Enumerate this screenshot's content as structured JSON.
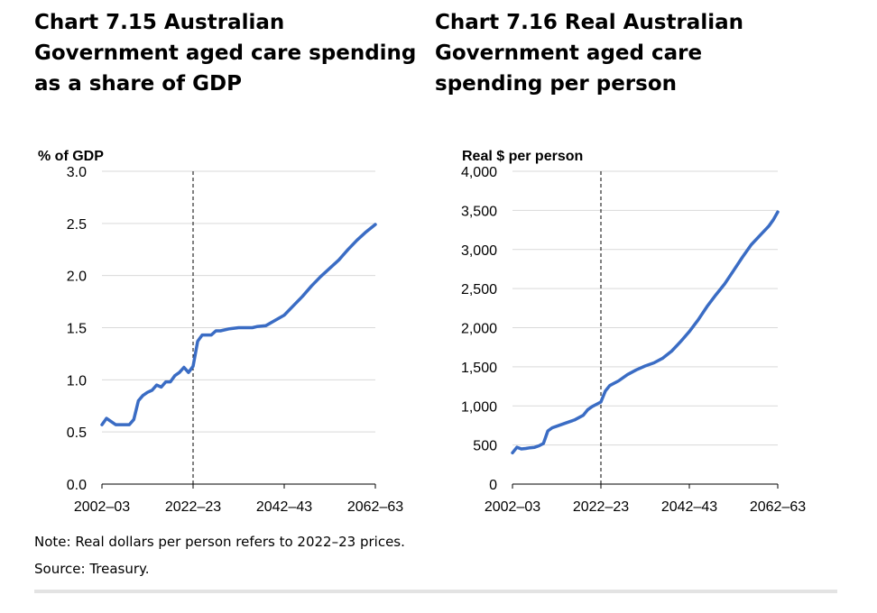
{
  "titles": {
    "left": "Chart 7.15  Australian Government aged care spending as a share of GDP",
    "right": "Chart 7.16  Real Australian Government aged care spending per person"
  },
  "footnotes": {
    "note": "Note: Real dollars per person refers to 2022–23 prices.",
    "source": "Source: Treasury."
  },
  "colors": {
    "series": "#3a6cc4",
    "grid": "#d9d9d9"
  },
  "chart_data": [
    {
      "id": "left",
      "type": "line",
      "title": "Chart 7.15  Australian Government aged care spending as a share of GDP",
      "ylabel": "% of GDP",
      "xlabel": "",
      "ylim": [
        0,
        3
      ],
      "yticks": [
        "0.0",
        "0.5",
        "1.0",
        "1.5",
        "2.0",
        "2.5",
        "3.0"
      ],
      "ytick_values": [
        0,
        0.5,
        1.0,
        1.5,
        2.0,
        2.5,
        3.0
      ],
      "xlim": [
        2002,
        2062
      ],
      "xticks": [
        "2002–03",
        "2022–23",
        "2042–43",
        "2062–63"
      ],
      "xtick_values": [
        2002,
        2022,
        2042,
        2062
      ],
      "marker_line_x": 2022,
      "grid": true,
      "series": [
        {
          "x": [
            2002,
            2003,
            2004,
            2005,
            2006,
            2007,
            2008,
            2009,
            2010,
            2011,
            2012,
            2013,
            2014,
            2015,
            2016,
            2017,
            2018,
            2019,
            2020,
            2021,
            2022,
            2023,
            2024,
            2025,
            2026,
            2027,
            2028,
            2030,
            2032,
            2034,
            2035,
            2036,
            2038,
            2040,
            2042,
            2044,
            2046,
            2048,
            2050,
            2052,
            2054,
            2056,
            2058,
            2060,
            2062
          ],
          "values": [
            0.57,
            0.63,
            0.6,
            0.57,
            0.57,
            0.57,
            0.57,
            0.62,
            0.8,
            0.85,
            0.88,
            0.9,
            0.95,
            0.93,
            0.98,
            0.98,
            1.04,
            1.07,
            1.12,
            1.07,
            1.13,
            1.37,
            1.43,
            1.43,
            1.43,
            1.47,
            1.47,
            1.49,
            1.5,
            1.5,
            1.5,
            1.51,
            1.52,
            1.57,
            1.62,
            1.71,
            1.8,
            1.9,
            1.99,
            2.07,
            2.15,
            2.25,
            2.34,
            2.42,
            2.49
          ]
        }
      ]
    },
    {
      "id": "right",
      "type": "line",
      "title": "Chart 7.16  Real Australian Government aged care spending per person",
      "ylabel": "Real $ per person",
      "xlabel": "",
      "ylim": [
        0,
        4000
      ],
      "yticks": [
        "0",
        "500",
        "1,000",
        "1,500",
        "2,000",
        "2,500",
        "3,000",
        "3,500",
        "4,000"
      ],
      "ytick_values": [
        0,
        500,
        1000,
        1500,
        2000,
        2500,
        3000,
        3500,
        4000
      ],
      "xlim": [
        2002,
        2062
      ],
      "xticks": [
        "2002–03",
        "2022–23",
        "2042–43",
        "2062–63"
      ],
      "xtick_values": [
        2002,
        2022,
        2042,
        2062
      ],
      "marker_line_x": 2022,
      "grid": true,
      "series": [
        {
          "x": [
            2002,
            2003,
            2004,
            2005,
            2006,
            2007,
            2008,
            2009,
            2010,
            2011,
            2012,
            2014,
            2016,
            2018,
            2019,
            2020,
            2021,
            2022,
            2023,
            2024,
            2026,
            2028,
            2030,
            2032,
            2034,
            2036,
            2038,
            2040,
            2042,
            2044,
            2046,
            2048,
            2050,
            2052,
            2054,
            2056,
            2058,
            2060,
            2061,
            2062
          ],
          "values": [
            400,
            470,
            450,
            455,
            465,
            470,
            490,
            520,
            680,
            720,
            740,
            780,
            820,
            880,
            950,
            990,
            1020,
            1050,
            1190,
            1260,
            1320,
            1400,
            1460,
            1510,
            1550,
            1610,
            1700,
            1820,
            1950,
            2100,
            2270,
            2420,
            2560,
            2730,
            2900,
            3060,
            3180,
            3300,
            3380,
            3480
          ]
        }
      ]
    }
  ]
}
